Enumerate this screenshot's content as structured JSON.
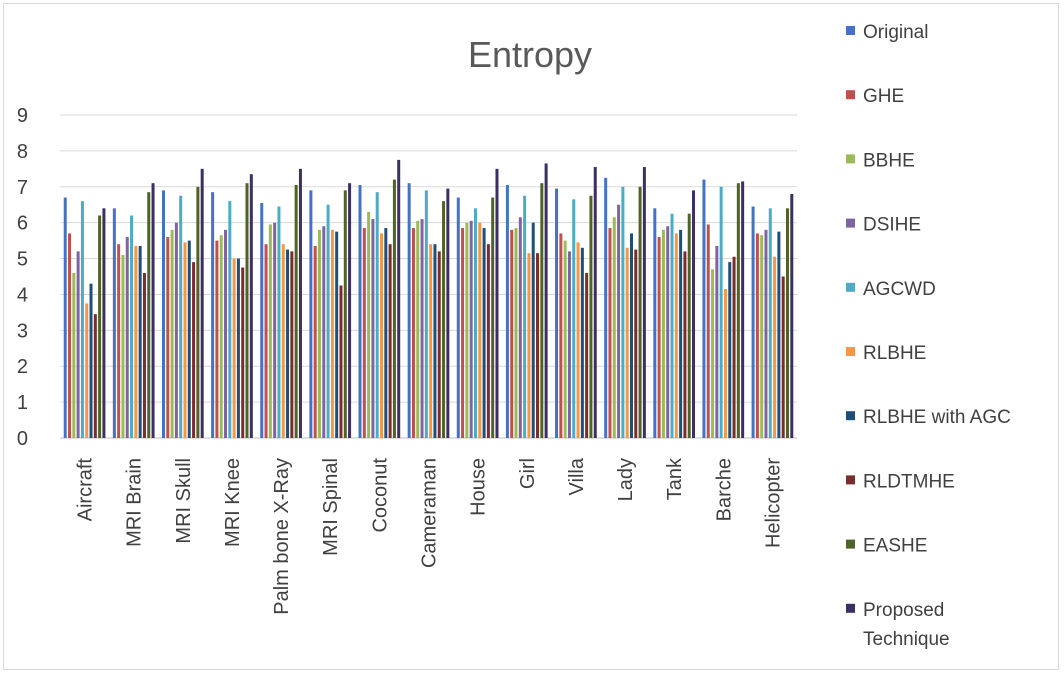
{
  "chart_data": {
    "type": "bar",
    "title": "Entropy",
    "xlabel": "",
    "ylabel": "",
    "ylim": [
      0,
      9
    ],
    "yticks": [
      0,
      1,
      2,
      3,
      4,
      5,
      6,
      7,
      8,
      9
    ],
    "grid": true,
    "legend_position": "right",
    "categories": [
      "Aircraft",
      "MRI Brain",
      "MRI Skull",
      "MRI Knee",
      "Palm bone X-Ray",
      "MRI Spinal",
      "Coconut",
      "Cameraman",
      "House",
      "Girl",
      "Villa",
      "Lady",
      "Tank",
      "Barche",
      "Helicopter"
    ],
    "series": [
      {
        "name": "Original",
        "color": "#4472C4",
        "values": [
          6.7,
          6.4,
          6.9,
          6.85,
          6.55,
          6.9,
          7.05,
          7.1,
          6.7,
          7.05,
          6.95,
          7.25,
          6.4,
          7.2,
          6.45
        ]
      },
      {
        "name": "GHE",
        "color": "#C0504D",
        "values": [
          5.7,
          5.4,
          5.6,
          5.5,
          5.4,
          5.35,
          5.85,
          5.85,
          5.85,
          5.8,
          5.7,
          5.85,
          5.6,
          5.95,
          5.7
        ]
      },
      {
        "name": "BBHE",
        "color": "#9BBB59",
        "values": [
          4.6,
          5.1,
          5.8,
          5.65,
          5.95,
          5.8,
          6.3,
          6.05,
          6.0,
          5.85,
          5.5,
          6.15,
          5.8,
          4.7,
          5.65
        ]
      },
      {
        "name": "DSIHE",
        "color": "#8064A2",
        "values": [
          5.2,
          5.6,
          6.0,
          5.8,
          6.0,
          5.9,
          6.1,
          6.1,
          6.05,
          6.15,
          5.2,
          6.5,
          5.9,
          5.35,
          5.8
        ]
      },
      {
        "name": "AGCWD",
        "color": "#4BACC6",
        "values": [
          6.6,
          6.2,
          6.75,
          6.6,
          6.45,
          6.5,
          6.85,
          6.9,
          6.4,
          6.75,
          6.65,
          7.0,
          6.25,
          7.0,
          6.4
        ]
      },
      {
        "name": "RLBHE",
        "color": "#F79646",
        "values": [
          3.75,
          5.35,
          5.45,
          5.0,
          5.4,
          5.8,
          5.7,
          5.4,
          6.0,
          5.15,
          5.45,
          5.3,
          5.7,
          4.15,
          5.05
        ]
      },
      {
        "name": "RLBHE with AGC",
        "color": "#1F4E79",
        "values": [
          4.3,
          5.35,
          5.5,
          5.0,
          5.25,
          5.75,
          5.85,
          5.4,
          5.85,
          6.0,
          5.3,
          5.7,
          5.8,
          4.9,
          5.75
        ]
      },
      {
        "name": "RLDTMHE",
        "color": "#7B2C2C",
        "values": [
          3.45,
          4.6,
          4.9,
          4.75,
          5.2,
          4.25,
          5.4,
          5.2,
          5.4,
          5.15,
          4.6,
          5.25,
          5.2,
          5.05,
          4.5
        ]
      },
      {
        "name": "EASHE",
        "color": "#4F6228",
        "values": [
          6.2,
          6.85,
          7.0,
          7.1,
          7.05,
          6.9,
          7.2,
          6.6,
          6.7,
          7.1,
          6.75,
          7.0,
          6.25,
          7.1,
          6.4
        ]
      },
      {
        "name": "Proposed Technique",
        "color": "#3B2F63",
        "values": [
          6.4,
          7.1,
          7.5,
          7.35,
          7.5,
          7.1,
          7.75,
          6.95,
          7.5,
          7.65,
          7.55,
          7.55,
          6.9,
          7.15,
          6.8
        ]
      }
    ]
  }
}
